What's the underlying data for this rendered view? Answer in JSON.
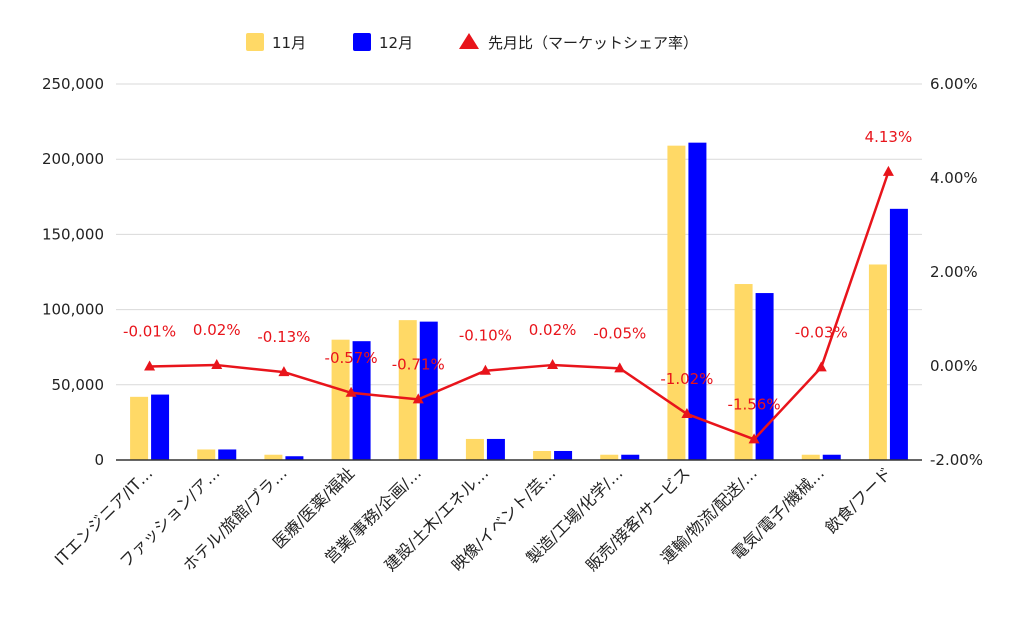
{
  "chart_data": {
    "type": "bar",
    "categories": [
      "ITエンジニア/IT…",
      "ファッション/ア…",
      "ホテル/旅館/ブラ…",
      "医療/医薬/福祉",
      "営業/事務/企画/…",
      "建設/土木/エネル…",
      "映像/イベント/芸…",
      "製造/工場/化学/…",
      "販売/接客/サービス",
      "運輸/物流/配送/…",
      "電気/電子/機械…",
      "飲食/フード"
    ],
    "series": [
      {
        "name": "11月",
        "type": "bar",
        "axis": "left",
        "color": "#ffd966",
        "values": [
          42000,
          7000,
          3500,
          80000,
          93000,
          14000,
          6000,
          3500,
          209000,
          117000,
          3500,
          130000
        ]
      },
      {
        "name": "12月",
        "type": "bar",
        "axis": "left",
        "color": "#0000ff",
        "values": [
          43500,
          7000,
          2500,
          79000,
          92000,
          14000,
          6000,
          3500,
          211000,
          111000,
          3500,
          167000
        ]
      },
      {
        "name": "先月比（マーケットシェア率）",
        "type": "line",
        "axis": "right",
        "color": "#e8141b",
        "marker": "triangle",
        "values": [
          -0.01,
          0.02,
          -0.13,
          -0.57,
          -0.71,
          -0.1,
          0.02,
          -0.05,
          -1.02,
          -1.56,
          -0.03,
          4.13
        ],
        "labels": [
          "-0.01%",
          "0.02%",
          "-0.13%",
          "-0.57%",
          "-0.71%",
          "-0.10%",
          "0.02%",
          "-0.05%",
          "-1.02%",
          "-1.56%",
          "-0.03%",
          "4.13%"
        ]
      }
    ],
    "yleft": {
      "ylim": [
        0,
        250000
      ],
      "ticks": [
        0,
        50000,
        100000,
        150000,
        200000,
        250000
      ],
      "tick_labels": [
        "0",
        "50,000",
        "100,000",
        "150,000",
        "200,000",
        "250,000"
      ]
    },
    "yright": {
      "ylim": [
        -2,
        6
      ],
      "ticks": [
        -2,
        0,
        2,
        4,
        6
      ],
      "tick_labels": [
        "-2.00%",
        "0.00%",
        "2.00%",
        "4.00%",
        "6.00%"
      ]
    },
    "grid": true,
    "legend": "top-center",
    "title": "",
    "xlabel": "",
    "ylabel": ""
  }
}
